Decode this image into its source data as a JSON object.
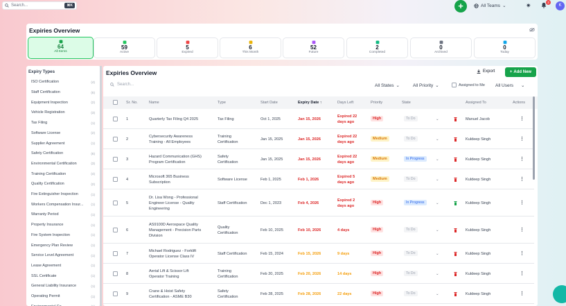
{
  "topbar": {
    "search_placeholder": "Search...",
    "search_shortcut": "⌘K",
    "add_button": "+",
    "teams_label": "All Teams",
    "notification_count": "2",
    "avatar_initial": "K"
  },
  "overview": {
    "title": "Expiries Overview",
    "stats": [
      {
        "num": "64",
        "label": "All Items",
        "icon": "calendar-icon",
        "color": "#16a34a"
      },
      {
        "num": "59",
        "label": "Active",
        "icon": "check-circle-icon",
        "color": "#22c55e"
      },
      {
        "num": "5",
        "label": "Expired",
        "icon": "alert-icon",
        "color": "#ef4444"
      },
      {
        "num": "6",
        "label": "This Month",
        "icon": "calendar-month-icon",
        "color": "#eab308"
      },
      {
        "num": "52",
        "label": "Future",
        "icon": "future-icon",
        "color": "#a855f7"
      },
      {
        "num": "2",
        "label": "Completed",
        "icon": "completed-icon",
        "color": "#10b981"
      },
      {
        "num": "0",
        "label": "Archived",
        "icon": "archive-icon",
        "color": "#6b7280"
      },
      {
        "num": "0",
        "label": "Today",
        "icon": "today-icon",
        "color": "#0ea5e9"
      }
    ]
  },
  "sidebar": {
    "title": "Expiry Types",
    "items": [
      {
        "label": "ISO Certification",
        "count": "(4)"
      },
      {
        "label": "Staff Certification",
        "count": "(6)"
      },
      {
        "label": "Equipment Inspection",
        "count": "(2)"
      },
      {
        "label": "Vehicle Registration",
        "count": "(3)"
      },
      {
        "label": "Tax Filing",
        "count": "(1)"
      },
      {
        "label": "Software License",
        "count": "(2)"
      },
      {
        "label": "Supplier Agreement",
        "count": "(1)"
      },
      {
        "label": "Safety Certification",
        "count": "(6)"
      },
      {
        "label": "Environmental Certification",
        "count": "(3)"
      },
      {
        "label": "Training Certification",
        "count": "(4)"
      },
      {
        "label": "Quality Certification",
        "count": "(2)"
      },
      {
        "label": "Fire Extinguisher Inspection",
        "count": "(1)"
      },
      {
        "label": "Workers Compensation Insur...",
        "count": "(1)"
      },
      {
        "label": "Warranty Period",
        "count": "(1)"
      },
      {
        "label": "Property Insurance",
        "count": "(1)"
      },
      {
        "label": "Fire System Inspection",
        "count": "(1)"
      },
      {
        "label": "Emergency Plan Review",
        "count": "(1)"
      },
      {
        "label": "Service Level Agreement",
        "count": "(1)"
      },
      {
        "label": "Lease Agreement",
        "count": "(1)"
      },
      {
        "label": "SSL Certificate",
        "count": "(1)"
      },
      {
        "label": "General Liability Insurance",
        "count": "(1)"
      },
      {
        "label": "Operating Permit",
        "count": "(1)"
      },
      {
        "label": "Environmental Co...",
        "count": "(1)"
      }
    ]
  },
  "main": {
    "title": "Expiries Overview",
    "export_label": "Export",
    "add_new_label": "Add New",
    "search_placeholder": "Search...",
    "filters": {
      "states": "All States",
      "priority": "All Priority",
      "assigned_to_me": "Assigned to Me",
      "users": "All Users"
    },
    "columns": [
      "Sr. No.",
      "Name",
      "Type",
      "Start Date",
      "Expiry Date",
      "Days Left",
      "Priority",
      "State",
      "Assigned To",
      "Actions"
    ],
    "rows": [
      {
        "no": "1",
        "name": [
          "Quarterly Tax Filing Q4 2025"
        ],
        "type": [
          "Tax Filing"
        ],
        "start": "Oct 1, 2025",
        "expiry": "Jan 15, 2026",
        "expiry_color": "red",
        "days": [
          "Expired 22",
          "days ago"
        ],
        "days_color": "red",
        "priority": "High",
        "state": "To Do",
        "trash_color": "#dc2626",
        "assigned": "Manuel Jacob"
      },
      {
        "no": "2",
        "name": [
          "Cybersecurity Awareness",
          "Training - All Employees"
        ],
        "type": [
          "Training",
          "Certification"
        ],
        "start": "Jan 15, 2025",
        "expiry": "Jan 15, 2026",
        "expiry_color": "red",
        "days": [
          "Expired 22",
          "days ago"
        ],
        "days_color": "red",
        "priority": "Medium",
        "state": "To Do",
        "trash_color": "#dc2626",
        "assigned": "Kuldeep Singh"
      },
      {
        "no": "3",
        "name": [
          "Hazard Communication (GHS)",
          "Program Certification"
        ],
        "type": [
          "Safety",
          "Certification"
        ],
        "start": "Jan 15, 2025",
        "expiry": "Jan 15, 2026",
        "expiry_color": "red",
        "days": [
          "Expired 22",
          "days ago"
        ],
        "days_color": "red",
        "priority": "Medium",
        "state": "In Progress",
        "trash_color": "#dc2626",
        "assigned": "Kuldeep Singh"
      },
      {
        "no": "4",
        "name": [
          "Microsoft 365 Business",
          "Subscription"
        ],
        "type": [
          "Software License"
        ],
        "start": "Feb 1, 2025",
        "expiry": "Feb 1, 2026",
        "expiry_color": "red",
        "days": [
          "Expired 5",
          "days ago"
        ],
        "days_color": "red",
        "priority": "Medium",
        "state": "To Do",
        "trash_color": "#dc2626",
        "assigned": "Kuldeep Singh"
      },
      {
        "no": "5",
        "name": [
          "Dr. Lisa Wong - Professional",
          "Engineer License - Quality",
          "Engineering"
        ],
        "type": [
          "Staff Certification"
        ],
        "start": "Dec 1, 2023",
        "expiry": "Feb 4, 2026",
        "expiry_color": "red",
        "days": [
          "Expired 2",
          "days ago"
        ],
        "days_color": "red",
        "priority": "High",
        "state": "In Progress",
        "trash_color": "#16a34a",
        "assigned": "Kuldeep Singh"
      },
      {
        "no": "6",
        "name": [
          "AS9100D Aerospace Quality",
          "Management - Precision Parts",
          "Division"
        ],
        "type": [
          "Quality",
          "Certification"
        ],
        "start": "Feb 10, 2025",
        "expiry": "Feb 10, 2026",
        "expiry_color": "red",
        "days": [
          "4 days"
        ],
        "days_color": "red",
        "priority": "High",
        "state": "To Do",
        "trash_color": "#dc2626",
        "assigned": "Kuldeep Singh"
      },
      {
        "no": "7",
        "name": [
          "Michael Rodriguez - Forklift",
          "Operator License Class IV"
        ],
        "type": [
          "Staff Certification"
        ],
        "start": "Feb 15, 2024",
        "expiry": "Feb 15, 2026",
        "expiry_color": "orange",
        "days": [
          "9 days"
        ],
        "days_color": "orange",
        "priority": "High",
        "state": "To Do",
        "trash_color": "#dc2626",
        "assigned": "Kuldeep Singh"
      },
      {
        "no": "8",
        "name": [
          "Aerial Lift & Scissor Lift",
          "Operator Training"
        ],
        "type": [
          "Training",
          "Certification"
        ],
        "start": "Feb 20, 2025",
        "expiry": "Feb 20, 2026",
        "expiry_color": "orange",
        "days": [
          "14 days"
        ],
        "days_color": "orange",
        "priority": "High",
        "state": "To Do",
        "trash_color": "#dc2626",
        "assigned": "Kuldeep Singh"
      },
      {
        "no": "9",
        "name": [
          "Crane & Hoist Safety",
          "Certification - ASME B30"
        ],
        "type": [
          "Safety",
          "Certification"
        ],
        "start": "Feb 28, 2025",
        "expiry": "Feb 28, 2026",
        "expiry_color": "orange",
        "days": [
          "22 days"
        ],
        "days_color": "orange",
        "priority": "High",
        "state": "To Do",
        "trash_color": "#dc2626",
        "assigned": "Kuldeep Singh"
      }
    ]
  }
}
